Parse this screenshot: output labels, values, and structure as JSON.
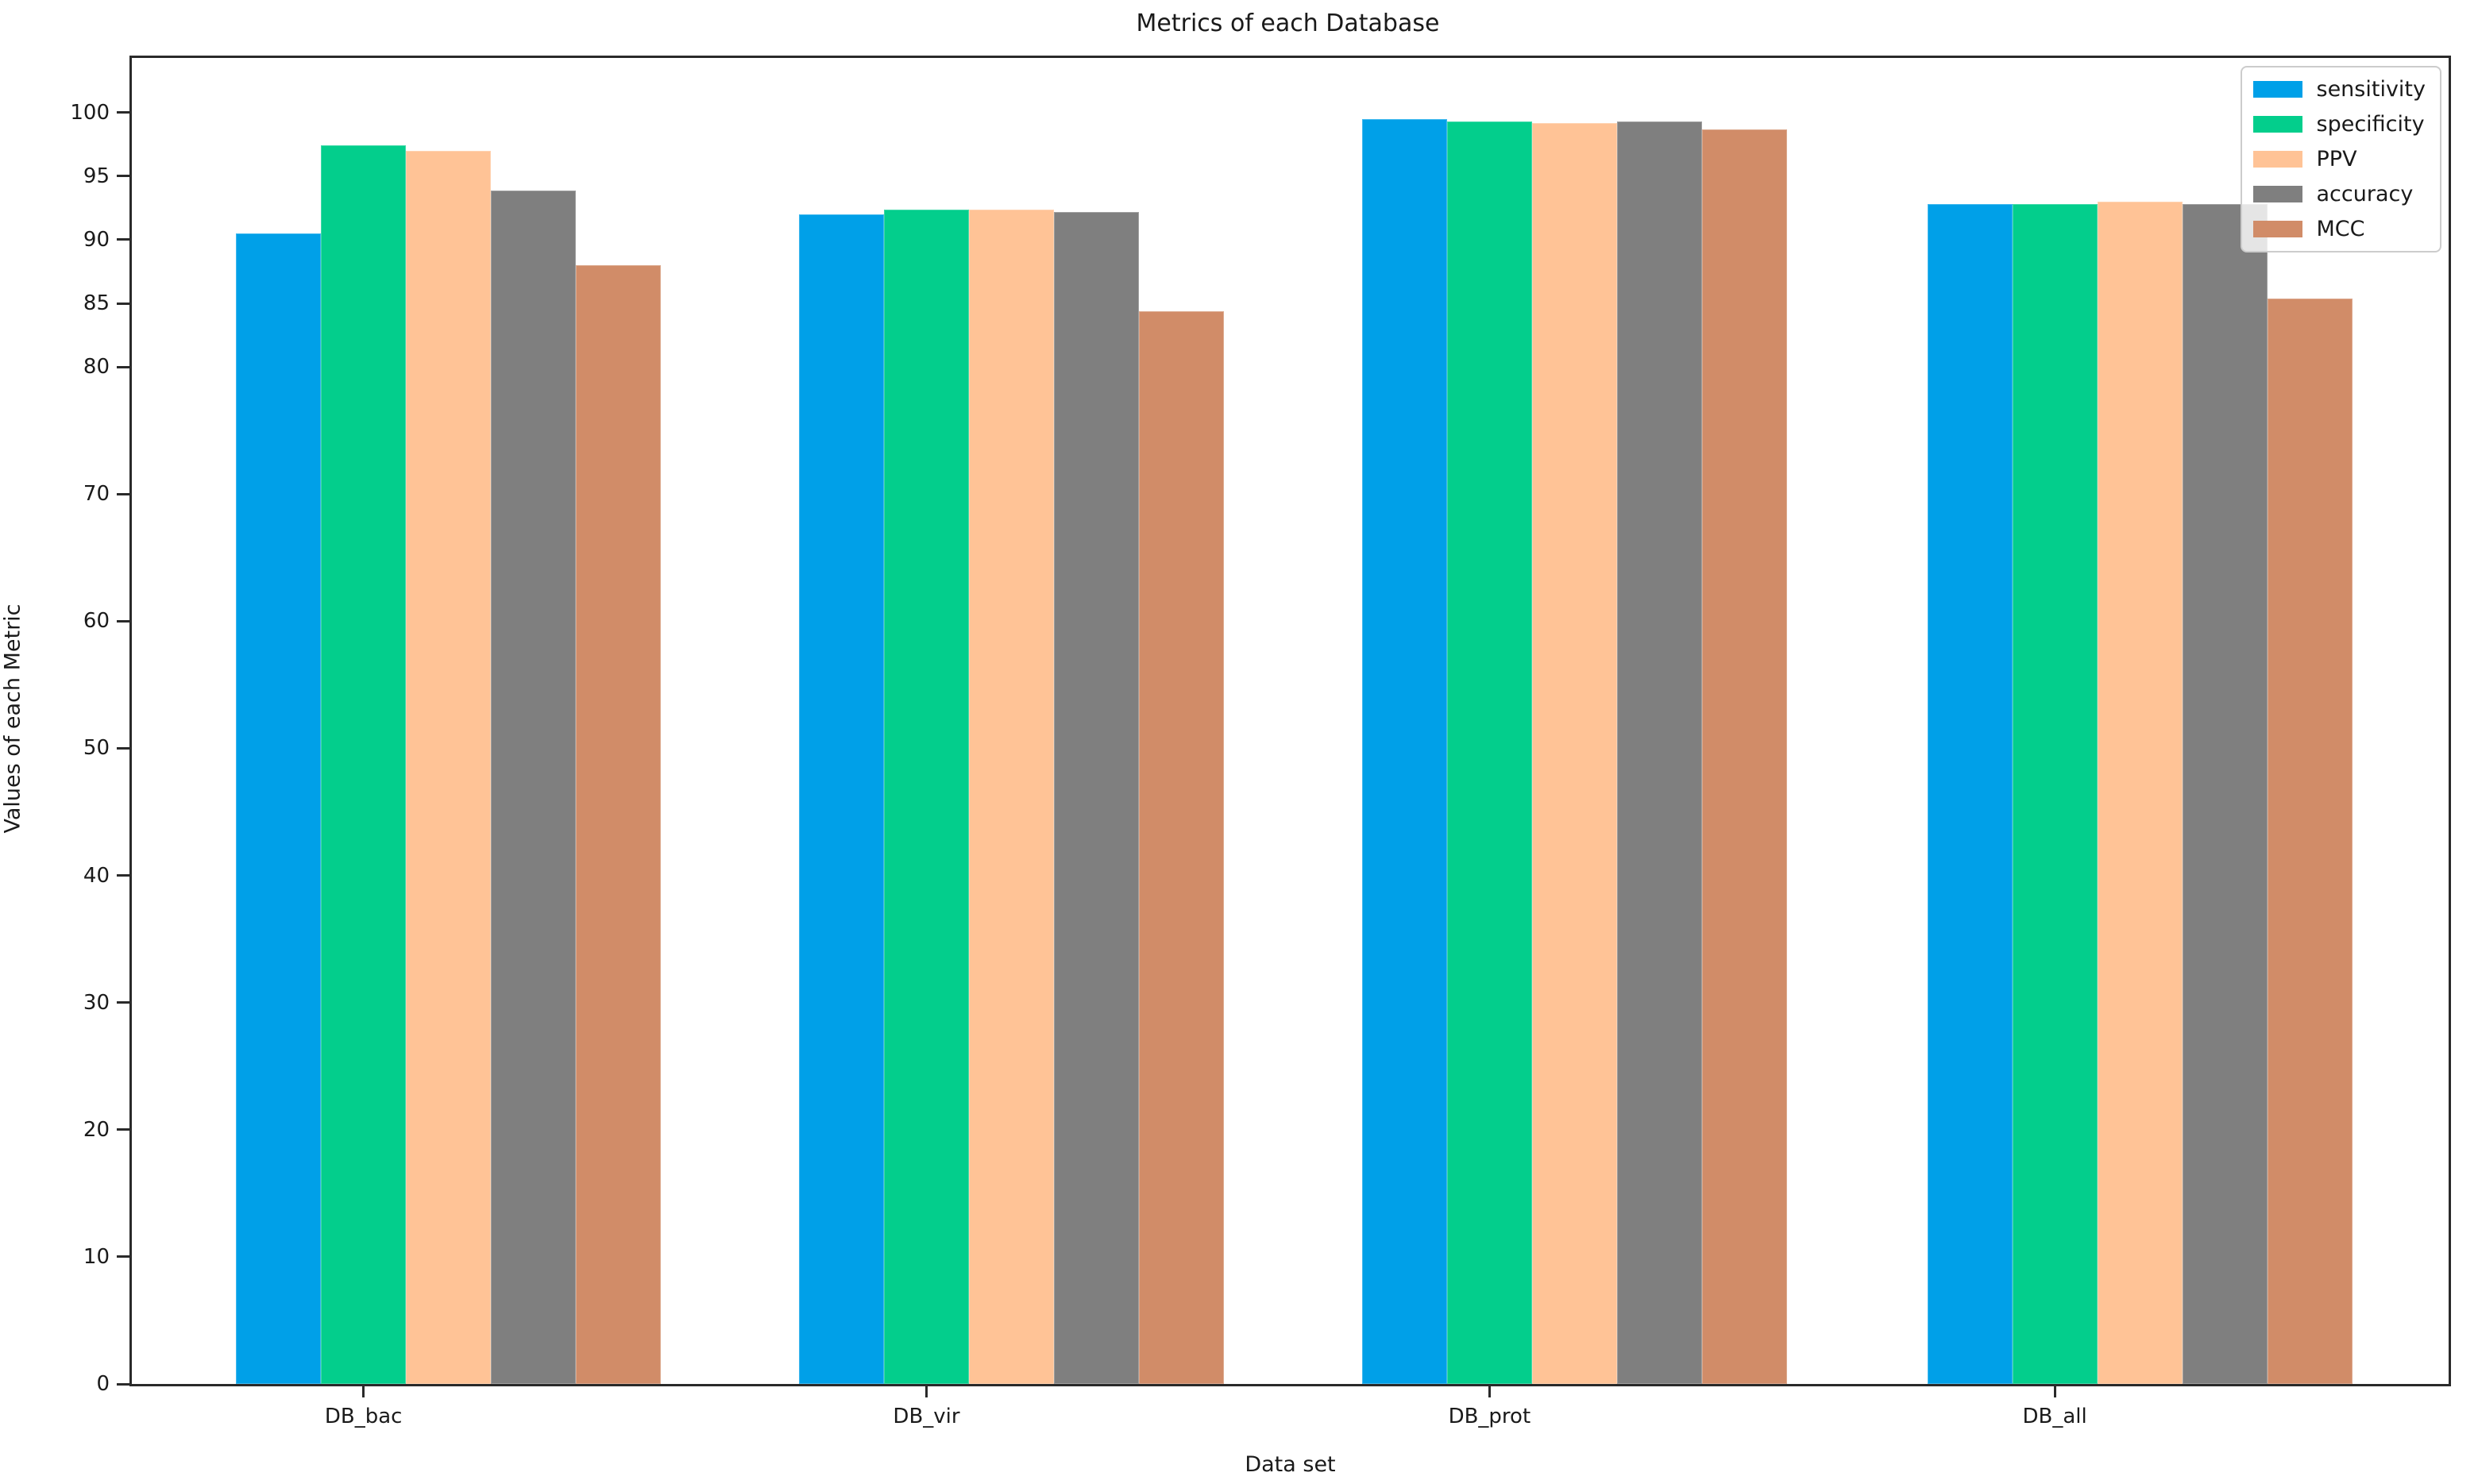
{
  "title": "Metrics of each Database",
  "chart_data": {
    "type": "bar",
    "title": "Metrics of each Database",
    "xlabel": "Data set",
    "ylabel": "Values of each Metric",
    "categories": [
      "DB_bac",
      "DB_vir",
      "DB_prot",
      "DB_all"
    ],
    "series": [
      {
        "name": "sensitivity",
        "color": "#00A0E8",
        "values": [
          90.5,
          92.0,
          99.5,
          92.8
        ]
      },
      {
        "name": "specificity",
        "color": "#03CE8C",
        "values": [
          97.4,
          92.4,
          99.3,
          92.8
        ]
      },
      {
        "name": "PPV",
        "color": "#FFC396",
        "values": [
          97.0,
          92.4,
          99.2,
          93.0
        ]
      },
      {
        "name": "accuracy",
        "color": "#7F7F7F",
        "values": [
          93.9,
          92.2,
          99.3,
          92.8
        ]
      },
      {
        "name": "MCC",
        "color": "#D18C68",
        "values": [
          88.0,
          84.4,
          98.7,
          85.4
        ]
      }
    ],
    "yticks": [
      0,
      10,
      20,
      30,
      40,
      50,
      60,
      70,
      80,
      85,
      90,
      95,
      100
    ],
    "ylim": [
      0,
      104.3
    ],
    "grid": false,
    "legend_position": "upper right",
    "axis_color": "#2a2a2a"
  }
}
